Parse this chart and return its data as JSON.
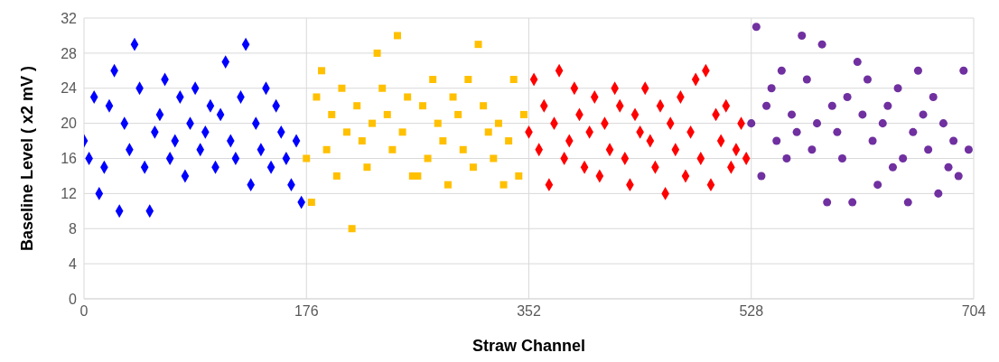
{
  "chart_data": {
    "type": "scatter",
    "xlabel": "Straw Channel",
    "ylabel": "Baseline Level ( x2 mV )",
    "xlim": [
      0,
      704
    ],
    "xticks": [
      0,
      176,
      352,
      528,
      704
    ],
    "ylim": [
      0,
      32
    ],
    "yticks": [
      0,
      4,
      8,
      12,
      16,
      20,
      24,
      28,
      32
    ],
    "grid": true,
    "legend": false,
    "series": [
      {
        "color": "#0000ff",
        "marker": "diamond",
        "x": [
          0,
          4,
          8,
          12,
          16,
          20,
          24,
          28,
          32,
          36,
          40,
          44,
          48,
          52,
          56,
          60,
          64,
          68,
          72,
          76,
          80,
          84,
          88,
          92,
          96,
          100,
          104,
          108,
          112,
          116,
          120,
          124,
          128,
          132,
          136,
          140,
          144,
          148,
          152,
          156,
          160,
          164,
          168,
          172
        ],
        "values": [
          18,
          16,
          23,
          12,
          15,
          22,
          26,
          10,
          20,
          17,
          29,
          24,
          15,
          10,
          19,
          21,
          25,
          16,
          18,
          23,
          14,
          20,
          24,
          17,
          19,
          22,
          15,
          21,
          27,
          18,
          16,
          23,
          29,
          13,
          20,
          17,
          24,
          15,
          22,
          19,
          16,
          13,
          18,
          11
        ]
      },
      {
        "color": "#ffc000",
        "marker": "square",
        "x": [
          176,
          180,
          184,
          188,
          192,
          196,
          200,
          204,
          208,
          212,
          216,
          220,
          224,
          228,
          232,
          236,
          240,
          244,
          248,
          252,
          256,
          260,
          264,
          268,
          272,
          276,
          280,
          284,
          288,
          292,
          296,
          300,
          304,
          308,
          312,
          316,
          320,
          324,
          328,
          332,
          336,
          340,
          344,
          348
        ],
        "values": [
          16,
          11,
          23,
          26,
          17,
          21,
          14,
          24,
          19,
          8,
          22,
          18,
          15,
          20,
          28,
          24,
          21,
          17,
          30,
          19,
          23,
          14,
          14,
          22,
          16,
          25,
          20,
          18,
          13,
          23,
          21,
          17,
          25,
          15,
          29,
          22,
          19,
          16,
          20,
          13,
          18,
          25,
          14,
          21
        ]
      },
      {
        "color": "#ff0000",
        "marker": "diamond",
        "x": [
          352,
          356,
          360,
          364,
          368,
          372,
          376,
          380,
          384,
          388,
          392,
          396,
          400,
          404,
          408,
          412,
          416,
          420,
          424,
          428,
          432,
          436,
          440,
          444,
          448,
          452,
          456,
          460,
          464,
          468,
          472,
          476,
          480,
          484,
          488,
          492,
          496,
          500,
          504,
          508,
          512,
          516,
          520,
          524
        ],
        "values": [
          19,
          25,
          17,
          22,
          13,
          20,
          26,
          16,
          18,
          24,
          21,
          15,
          19,
          23,
          14,
          20,
          17,
          24,
          22,
          16,
          13,
          21,
          19,
          24,
          18,
          15,
          22,
          12,
          20,
          17,
          23,
          14,
          19,
          25,
          16,
          26,
          13,
          21,
          18,
          22,
          15,
          17,
          20,
          16
        ]
      },
      {
        "color": "#7030a0",
        "marker": "circle",
        "x": [
          528,
          532,
          536,
          540,
          544,
          548,
          552,
          556,
          560,
          564,
          568,
          572,
          576,
          580,
          584,
          588,
          592,
          596,
          600,
          604,
          608,
          612,
          616,
          620,
          624,
          628,
          632,
          636,
          640,
          644,
          648,
          652,
          656,
          660,
          664,
          668,
          672,
          676,
          680,
          684,
          688,
          692,
          696,
          700
        ],
        "values": [
          20,
          31,
          14,
          22,
          24,
          18,
          26,
          16,
          21,
          19,
          30,
          25,
          17,
          20,
          29,
          11,
          22,
          19,
          16,
          23,
          11,
          27,
          21,
          25,
          18,
          13,
          20,
          22,
          15,
          24,
          16,
          11,
          19,
          26,
          21,
          17,
          23,
          12,
          20,
          15,
          18,
          14,
          26,
          17
        ]
      }
    ]
  }
}
